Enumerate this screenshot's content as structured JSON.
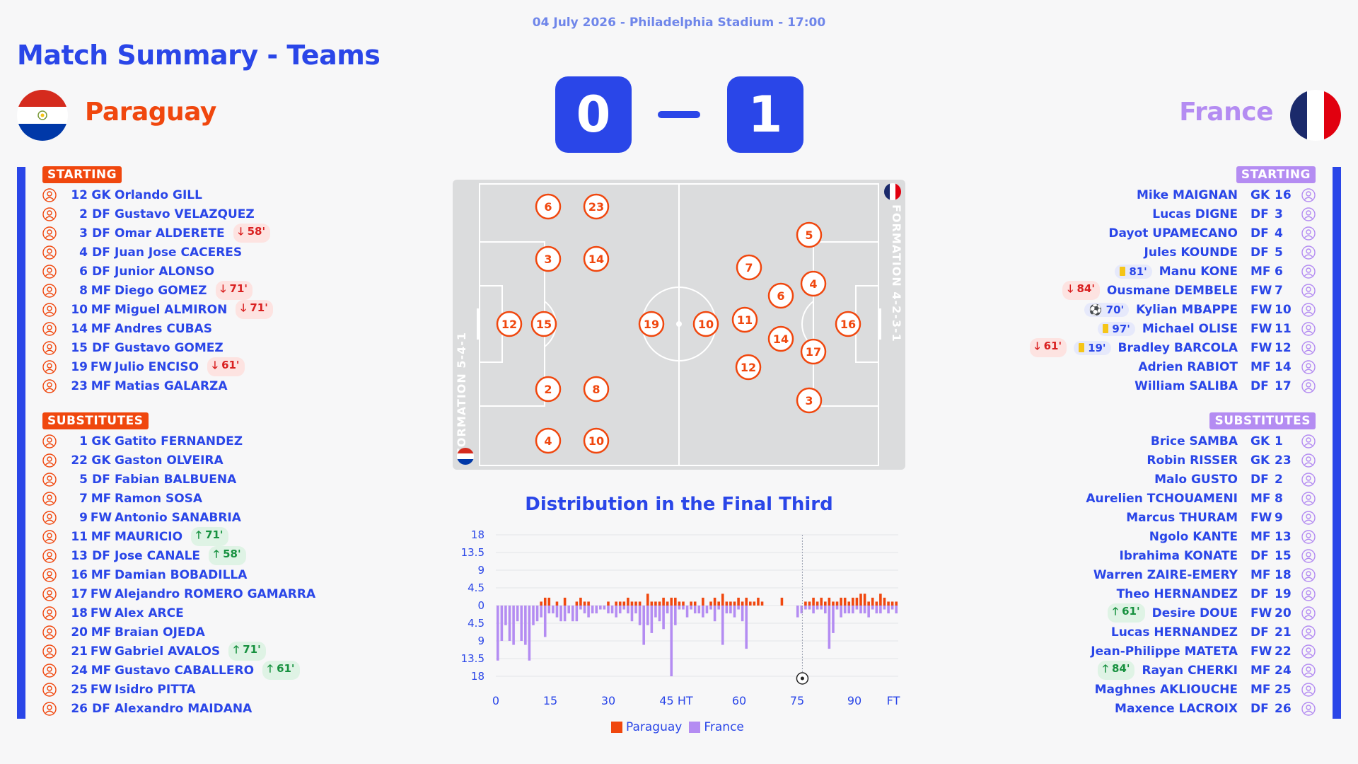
{
  "header": {
    "subtitle": "04 July 2026 - Philadelphia Stadium - 17:00",
    "title": "Match Summary - Teams"
  },
  "home": {
    "name": "Paraguay",
    "score": "0",
    "color": "#f0470e",
    "starting_label": "STARTING",
    "subs_label": "SUBSTITUTES",
    "formation": "FORMATION 5-4-1",
    "starting": [
      {
        "num": "12",
        "pos": "GK",
        "name": "Orlando GILL",
        "event": ""
      },
      {
        "num": "2",
        "pos": "DF",
        "name": "Gustavo VELAZQUEZ",
        "event": ""
      },
      {
        "num": "3",
        "pos": "DF",
        "name": "Omar ALDERETE",
        "event": "58'",
        "type": "out"
      },
      {
        "num": "4",
        "pos": "DF",
        "name": "Juan Jose CACERES",
        "event": ""
      },
      {
        "num": "6",
        "pos": "DF",
        "name": "Junior ALONSO",
        "event": ""
      },
      {
        "num": "8",
        "pos": "MF",
        "name": "Diego GOMEZ",
        "event": "71'",
        "type": "out"
      },
      {
        "num": "10",
        "pos": "MF",
        "name": "Miguel ALMIRON",
        "event": "71'",
        "type": "out"
      },
      {
        "num": "14",
        "pos": "MF",
        "name": "Andres CUBAS",
        "event": ""
      },
      {
        "num": "15",
        "pos": "DF",
        "name": "Gustavo GOMEZ",
        "event": ""
      },
      {
        "num": "19",
        "pos": "FW",
        "name": "Julio ENCISO",
        "event": "61'",
        "type": "out"
      },
      {
        "num": "23",
        "pos": "MF",
        "name": "Matias GALARZA",
        "event": ""
      }
    ],
    "subs": [
      {
        "num": "1",
        "pos": "GK",
        "name": "Gatito FERNANDEZ",
        "event": ""
      },
      {
        "num": "22",
        "pos": "GK",
        "name": "Gaston OLVEIRA",
        "event": ""
      },
      {
        "num": "5",
        "pos": "DF",
        "name": "Fabian BALBUENA",
        "event": ""
      },
      {
        "num": "7",
        "pos": "MF",
        "name": "Ramon SOSA",
        "event": ""
      },
      {
        "num": "9",
        "pos": "FW",
        "name": "Antonio SANABRIA",
        "event": ""
      },
      {
        "num": "11",
        "pos": "MF",
        "name": "MAURICIO",
        "event": "71'",
        "type": "in"
      },
      {
        "num": "13",
        "pos": "DF",
        "name": "Jose CANALE",
        "event": "58'",
        "type": "in"
      },
      {
        "num": "16",
        "pos": "MF",
        "name": "Damian BOBADILLA",
        "event": ""
      },
      {
        "num": "17",
        "pos": "FW",
        "name": "Alejandro ROMERO GAMARRA",
        "event": ""
      },
      {
        "num": "18",
        "pos": "FW",
        "name": "Alex ARCE",
        "event": ""
      },
      {
        "num": "20",
        "pos": "MF",
        "name": "Braian OJEDA",
        "event": ""
      },
      {
        "num": "21",
        "pos": "FW",
        "name": "Gabriel AVALOS",
        "event": "71'",
        "type": "in"
      },
      {
        "num": "24",
        "pos": "MF",
        "name": "Gustavo CABALLERO",
        "event": "61'",
        "type": "in"
      },
      {
        "num": "25",
        "pos": "FW",
        "name": "Isidro PITTA",
        "event": ""
      },
      {
        "num": "26",
        "pos": "DF",
        "name": "Alexandro MAIDANA",
        "event": ""
      }
    ],
    "pitch_numbers": [
      "6",
      "23",
      "3",
      "14",
      "12",
      "15",
      "2",
      "8",
      "4",
      "10",
      "19"
    ]
  },
  "away": {
    "name": "France",
    "score": "1",
    "color": "#b48cf2",
    "starting_label": "STARTING",
    "subs_label": "SUBSTITUTES",
    "formation": "FORMATION 4-2-3-1",
    "starting": [
      {
        "num": "16",
        "pos": "GK",
        "name": "Mike MAIGNAN",
        "events": []
      },
      {
        "num": "3",
        "pos": "DF",
        "name": "Lucas DIGNE",
        "events": []
      },
      {
        "num": "4",
        "pos": "DF",
        "name": "Dayot UPAMECANO",
        "events": []
      },
      {
        "num": "5",
        "pos": "DF",
        "name": "Jules KOUNDE",
        "events": []
      },
      {
        "num": "6",
        "pos": "MF",
        "name": "Manu KONE",
        "events": [
          {
            "type": "card",
            "t": "81'"
          }
        ]
      },
      {
        "num": "7",
        "pos": "FW",
        "name": "Ousmane DEMBELE",
        "events": [
          {
            "type": "out",
            "t": "84'"
          }
        ]
      },
      {
        "num": "10",
        "pos": "FW",
        "name": "Kylian MBAPPE",
        "events": [
          {
            "type": "goal",
            "t": "70'"
          }
        ]
      },
      {
        "num": "11",
        "pos": "FW",
        "name": "Michael OLISE",
        "events": [
          {
            "type": "card",
            "t": "97'"
          }
        ]
      },
      {
        "num": "12",
        "pos": "FW",
        "name": "Bradley BARCOLA",
        "events": [
          {
            "type": "out",
            "t": "61'"
          },
          {
            "type": "card",
            "t": "19'"
          }
        ]
      },
      {
        "num": "14",
        "pos": "MF",
        "name": "Adrien RABIOT",
        "events": []
      },
      {
        "num": "17",
        "pos": "DF",
        "name": "William SALIBA",
        "events": []
      }
    ],
    "subs": [
      {
        "num": "1",
        "pos": "GK",
        "name": "Brice SAMBA",
        "events": []
      },
      {
        "num": "23",
        "pos": "GK",
        "name": "Robin RISSER",
        "events": []
      },
      {
        "num": "2",
        "pos": "DF",
        "name": "Malo GUSTO",
        "events": []
      },
      {
        "num": "8",
        "pos": "MF",
        "name": "Aurelien TCHOUAMENI",
        "events": []
      },
      {
        "num": "9",
        "pos": "FW",
        "name": "Marcus THURAM",
        "events": []
      },
      {
        "num": "13",
        "pos": "MF",
        "name": "Ngolo KANTE",
        "events": []
      },
      {
        "num": "15",
        "pos": "DF",
        "name": "Ibrahima KONATE",
        "events": []
      },
      {
        "num": "18",
        "pos": "MF",
        "name": "Warren ZAIRE-EMERY",
        "events": []
      },
      {
        "num": "19",
        "pos": "DF",
        "name": "Theo HERNANDEZ",
        "events": []
      },
      {
        "num": "20",
        "pos": "FW",
        "name": "Desire DOUE",
        "events": [
          {
            "type": "in",
            "t": "61'"
          }
        ]
      },
      {
        "num": "21",
        "pos": "DF",
        "name": "Lucas HERNANDEZ",
        "events": []
      },
      {
        "num": "22",
        "pos": "FW",
        "name": "Jean-Philippe MATETA",
        "events": []
      },
      {
        "num": "24",
        "pos": "MF",
        "name": "Rayan CHERKI",
        "events": [
          {
            "type": "in",
            "t": "84'"
          }
        ]
      },
      {
        "num": "25",
        "pos": "MF",
        "name": "Maghnes AKLIOUCHE",
        "events": []
      },
      {
        "num": "26",
        "pos": "DF",
        "name": "Maxence LACROIX",
        "events": []
      }
    ],
    "pitch_numbers": [
      "5",
      "7",
      "4",
      "6",
      "11",
      "16",
      "14",
      "17",
      "12",
      "3",
      "10"
    ]
  },
  "chart_data": {
    "type": "bar",
    "title": "Distribution in the Final Third",
    "x_ticks": [
      "0",
      "15",
      "30",
      "45 HT",
      "60",
      "75",
      "90",
      "FT"
    ],
    "y_ticks": [
      "18",
      "13.5",
      "9",
      "4.5",
      "0",
      "4.5",
      "9",
      "13.5",
      "18"
    ],
    "ylim": [
      -18,
      18
    ],
    "goal_minute": 70,
    "series": [
      {
        "name": "Paraguay",
        "color": "#f0470e",
        "values": [
          0,
          0,
          0,
          0,
          0,
          0,
          0,
          0,
          0,
          0,
          0,
          1,
          2,
          2,
          0,
          1,
          0,
          2,
          0,
          0,
          1,
          2,
          1,
          1,
          0,
          0,
          0,
          0,
          1,
          0,
          1,
          1,
          1,
          2,
          1,
          1,
          1,
          0,
          3,
          1,
          1,
          1,
          2,
          1,
          2,
          2,
          1,
          1,
          0,
          1,
          1,
          0,
          2,
          0,
          1,
          2,
          1,
          3,
          1,
          1,
          1,
          2,
          1,
          2,
          1,
          1,
          2,
          1,
          0,
          0,
          0,
          0,
          2,
          0,
          0,
          0,
          0,
          0,
          1,
          1,
          2,
          1,
          2,
          1,
          2,
          1,
          1,
          2,
          2,
          1,
          2,
          2,
          3,
          3,
          1,
          2,
          1,
          3,
          2,
          1,
          1,
          1
        ]
      },
      {
        "name": "France",
        "color": "#b48cf2",
        "values": [
          -14,
          -9,
          -5,
          -9,
          -10,
          -4,
          -9,
          -10,
          -14,
          -5,
          -4,
          -3,
          -8,
          -2,
          -2,
          -3,
          -4,
          -4,
          -2,
          -4,
          -4,
          -1,
          -2,
          -3,
          -2,
          -2,
          -1,
          -1,
          -2,
          -2,
          -3,
          -2,
          -1,
          -2,
          -4,
          -2,
          -5,
          -10,
          -5,
          -7,
          -3,
          -4,
          -6,
          -2,
          -18,
          -5,
          -1,
          -1,
          -3,
          -1,
          -2,
          -2,
          -3,
          -2,
          -1,
          -4,
          -1,
          -10,
          -2,
          -2,
          -3,
          -1,
          -4,
          -11,
          0,
          0,
          0,
          0,
          0,
          0,
          0,
          0,
          0,
          0,
          0,
          0,
          -3,
          -2,
          -1,
          -1,
          -2,
          -1,
          -1,
          -2,
          -11,
          -7,
          -1,
          -3,
          -2,
          -2,
          -2,
          -1,
          -2,
          -2,
          -3,
          -1,
          -2,
          -2,
          -1,
          -2,
          -1,
          -2
        ]
      }
    ]
  },
  "legend": {
    "paraguay": "Paraguay",
    "france": "France"
  }
}
